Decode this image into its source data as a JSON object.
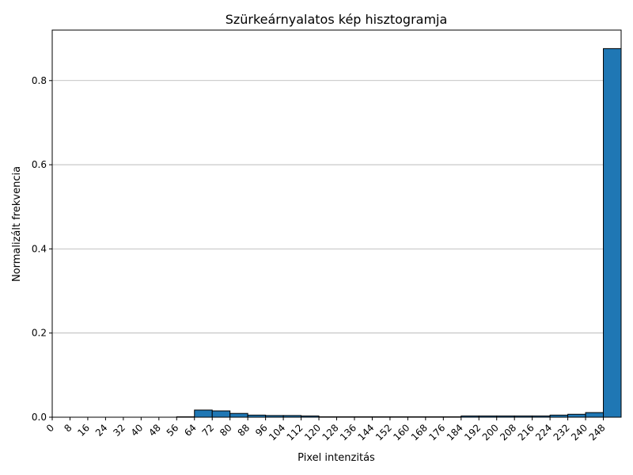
{
  "chart_data": {
    "type": "bar",
    "title": "Szürkeárnyalatos kép hisztogramja",
    "xlabel": "Pixel intenzitás",
    "ylabel": "Normalizált frekvencia",
    "bin_width": 8,
    "xlim": [
      0,
      256
    ],
    "ylim": [
      0,
      0.92
    ],
    "yticks": [
      0.0,
      0.2,
      0.4,
      0.6,
      0.8
    ],
    "ytick_labels": [
      "0.0",
      "0.2",
      "0.4",
      "0.6",
      "0.8"
    ],
    "xtick_labels": [
      "0",
      "8",
      "16",
      "24",
      "32",
      "40",
      "48",
      "56",
      "64",
      "72",
      "80",
      "88",
      "96",
      "104",
      "112",
      "120",
      "128",
      "136",
      "144",
      "152",
      "160",
      "168",
      "176",
      "184",
      "192",
      "200",
      "208",
      "216",
      "224",
      "232",
      "240",
      "248"
    ],
    "bin_starts": [
      0,
      8,
      16,
      24,
      32,
      40,
      48,
      56,
      64,
      72,
      80,
      88,
      96,
      104,
      112,
      120,
      128,
      136,
      144,
      152,
      160,
      168,
      176,
      184,
      192,
      200,
      208,
      216,
      224,
      232,
      240,
      248
    ],
    "values": [
      0.0,
      0.0,
      0.0,
      0.0,
      0.0,
      0.0,
      0.0,
      0.001,
      0.017,
      0.015,
      0.009,
      0.005,
      0.004,
      0.004,
      0.003,
      0.001,
      0.001,
      0.001,
      0.001,
      0.001,
      0.001,
      0.001,
      0.001,
      0.003,
      0.003,
      0.003,
      0.003,
      0.003,
      0.005,
      0.007,
      0.011,
      0.876
    ],
    "grid": "y",
    "bar_color": "#1f77b4",
    "edge_color": "#000000"
  }
}
